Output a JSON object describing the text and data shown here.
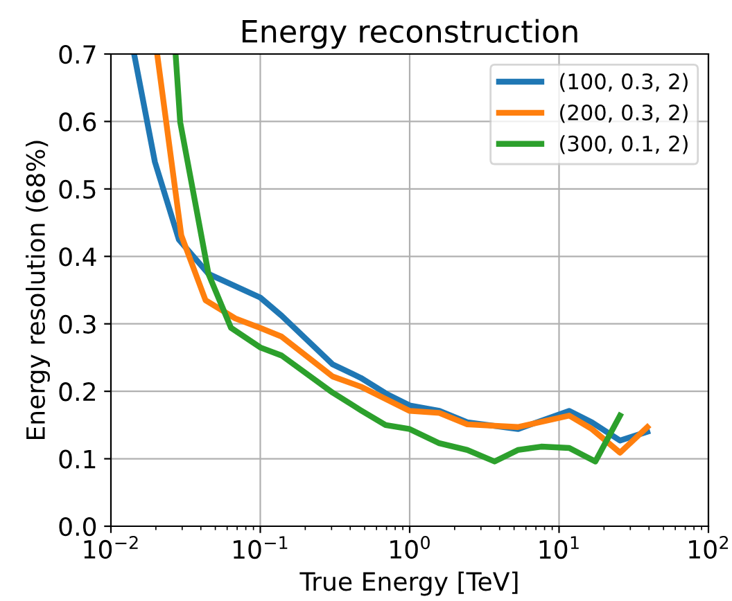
{
  "chart_data": {
    "type": "line",
    "title": "Energy reconstruction",
    "xlabel": "True Energy [TeV]",
    "ylabel": "Energy resolution (68%)",
    "log": "x",
    "xlim": [
      0.01,
      100
    ],
    "xticks": [
      {
        "value": 0.01,
        "label": "10$^{−2}$"
      },
      {
        "value": 0.1,
        "label": "10$^{−1}$"
      },
      {
        "value": 1,
        "label": "10$^{0}$"
      },
      {
        "value": 10,
        "label": "10$^{1}$"
      },
      {
        "value": 100,
        "label": "10$^{2}$"
      }
    ],
    "ylim": [
      0,
      0.7
    ],
    "yticks": [
      {
        "value": 0,
        "label": "0.0"
      },
      0.1,
      0.2,
      0.3,
      0.4,
      0.5,
      0.6,
      0.7
    ],
    "grid": true,
    "legend": "top right",
    "line_style": "solid",
    "series": [
      {
        "name": "(100, 0.3, 2)",
        "color": "#1f77b4",
        "x": [
          0.0143,
          0.0197,
          0.0285,
          0.045,
          0.1,
          0.139,
          0.305,
          0.47,
          0.716,
          1.0,
          1.58,
          2.43,
          5.3,
          11.7,
          16.6,
          25.6,
          39
        ],
        "values": [
          0.7,
          0.54,
          0.425,
          0.374,
          0.339,
          0.312,
          0.24,
          0.22,
          0.195,
          0.179,
          0.171,
          0.154,
          0.144,
          0.171,
          0.154,
          0.127,
          0.14
        ]
      },
      {
        "name": "(200, 0.3, 2)",
        "color": "#ff7f0e",
        "x": [
          0.0204,
          0.0296,
          0.043,
          0.068,
          0.1,
          0.139,
          0.305,
          0.47,
          1.0,
          1.58,
          2.43,
          5.3,
          11.7,
          16.6,
          25.6,
          39
        ],
        "values": [
          0.7,
          0.431,
          0.335,
          0.308,
          0.294,
          0.281,
          0.222,
          0.207,
          0.171,
          0.168,
          0.151,
          0.147,
          0.164,
          0.144,
          0.109,
          0.147
        ]
      },
      {
        "name": "(300, 0.1, 2)",
        "color": "#2ca02c",
        "x": [
          0.0271,
          0.0291,
          0.045,
          0.0637,
          0.1,
          0.139,
          0.305,
          0.47,
          0.69,
          1.0,
          1.58,
          2.43,
          3.7,
          5.3,
          7.6,
          11.7,
          17.5,
          25.6
        ],
        "values": [
          0.7,
          0.599,
          0.374,
          0.294,
          0.265,
          0.253,
          0.198,
          0.172,
          0.15,
          0.144,
          0.123,
          0.113,
          0.096,
          0.113,
          0.118,
          0.116,
          0.096,
          0.164
        ]
      }
    ]
  }
}
